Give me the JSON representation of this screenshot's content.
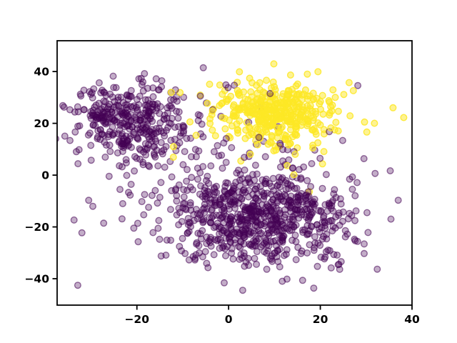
{
  "figure": {
    "background": "#ffffff",
    "spine_color": "#000000",
    "tick_color": "#000000"
  },
  "chart_data": {
    "type": "scatter",
    "title": "",
    "xlabel": "",
    "ylabel": "",
    "grid": false,
    "legend": null,
    "xlim": [
      -37.4,
      40
    ],
    "ylim": [
      -50.2,
      51.9
    ],
    "xticks": [
      {
        "value": -20,
        "label": "−20"
      },
      {
        "value": 0,
        "label": "0"
      },
      {
        "value": 20,
        "label": "20"
      },
      {
        "value": 40,
        "label": "40"
      }
    ],
    "yticks": [
      {
        "value": -40,
        "label": "−40"
      },
      {
        "value": -20,
        "label": "−20"
      },
      {
        "value": 0,
        "label": "0"
      },
      {
        "value": 20,
        "label": "20"
      },
      {
        "value": 40,
        "label": "40"
      }
    ],
    "seed": 1337,
    "marker": {
      "radius_px": 4.3,
      "stroke_width_px": 1.4
    },
    "classes": {
      "purple": {
        "color": "#440154",
        "fill_opacity": 0.32,
        "stroke_opacity": 0.55
      },
      "yellow": {
        "color": "#FDE725",
        "fill_opacity": 0.5,
        "stroke_opacity": 0.85
      }
    },
    "clusters": [
      {
        "name": "purple-upper-left-blob",
        "class": "purple",
        "n": 380,
        "center": [
          -21.0,
          20.5
        ],
        "std": [
          6.4,
          7.2
        ]
      },
      {
        "name": "purple-lower-broad-blob",
        "class": "purple",
        "n": 680,
        "center": [
          7.0,
          -17.5
        ],
        "std": [
          10.5,
          8.8
        ]
      },
      {
        "name": "purple-background-scatter",
        "class": "purple",
        "n": 150,
        "center": [
          1.0,
          -2.0
        ],
        "std": [
          16.5,
          15.5
        ]
      },
      {
        "name": "yellow-main-blob",
        "class": "yellow",
        "n": 400,
        "center": [
          10.5,
          24.0
        ],
        "std": [
          6.6,
          6.0
        ]
      },
      {
        "name": "yellow-sparse-strays",
        "class": "yellow",
        "n": 16,
        "center": [
          8.0,
          16.0
        ],
        "std": [
          16.0,
          13.0
        ]
      }
    ]
  }
}
